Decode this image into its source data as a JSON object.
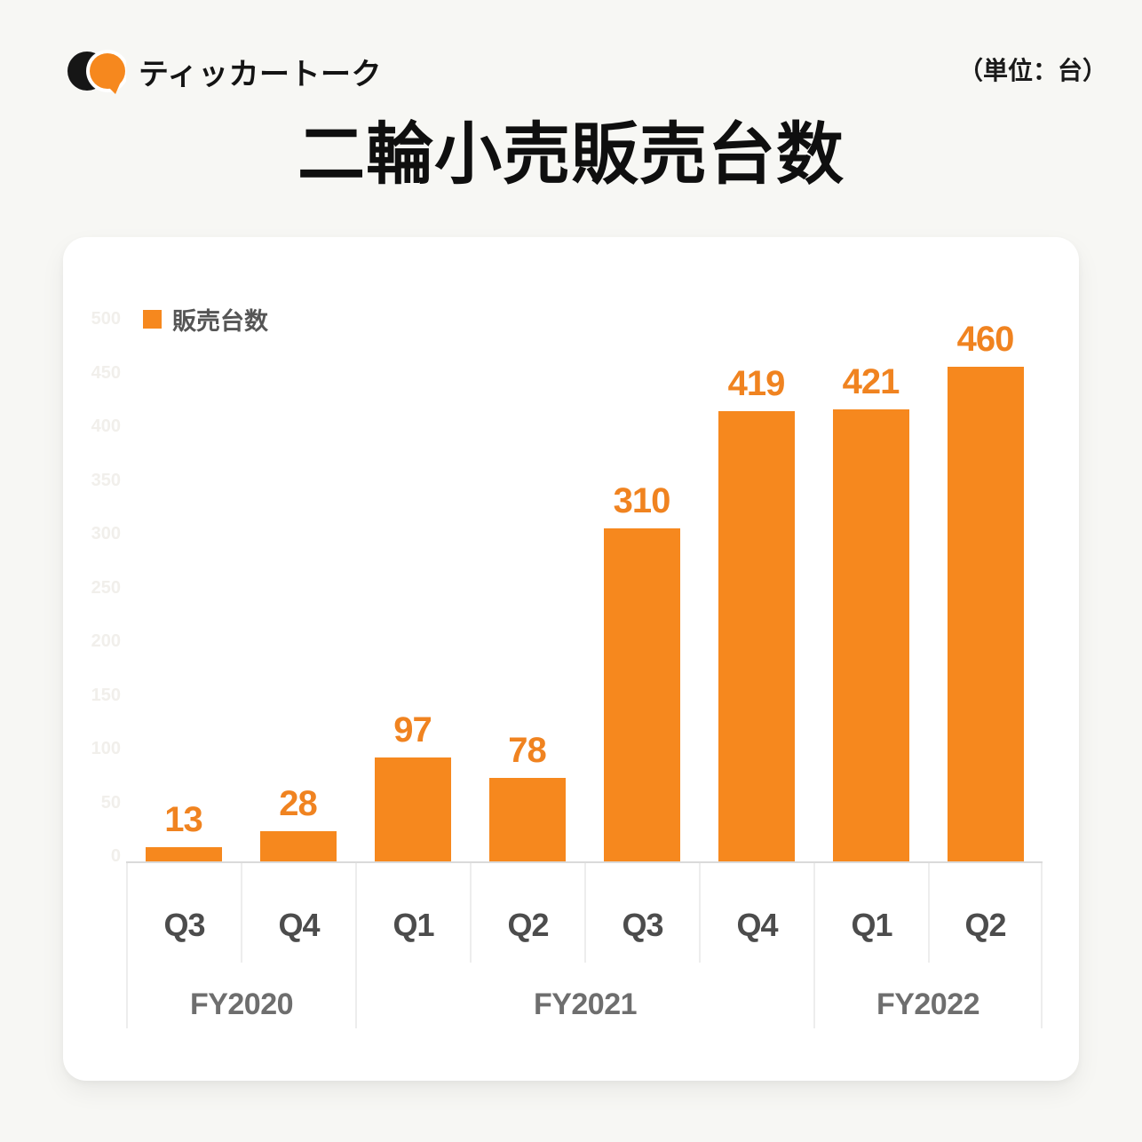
{
  "header": {
    "logo_text": "ティッカートーク",
    "unit_label": "（単位：台）"
  },
  "title": "二輪小売販売台数",
  "colors": {
    "accent_orange": "#F6881E",
    "logo_black": "#161616",
    "background": "#F7F7F4",
    "card": "#FFFFFF",
    "quarter_label": "#4C4C4C",
    "fiscal_label": "#6E6E6E",
    "divider": "#EDEDED",
    "baseline": "#DADADA",
    "ytick_label": "#F1EFEB"
  },
  "chart_data": {
    "type": "bar",
    "title": "二輪小売販売台数",
    "unit": "台",
    "legend_label": "販売台数",
    "legend_position": "top-left",
    "categories": [
      "Q3",
      "Q4",
      "Q1",
      "Q2",
      "Q3",
      "Q4",
      "Q1",
      "Q2"
    ],
    "values": [
      13,
      28,
      97,
      78,
      310,
      419,
      421,
      460
    ],
    "year_groups": [
      {
        "label": "FY2020",
        "span": 2
      },
      {
        "label": "FY2021",
        "span": 4
      },
      {
        "label": "FY2022",
        "span": 2
      }
    ],
    "ylim": [
      0,
      500
    ],
    "ytick_step": 50,
    "grid": false,
    "bar_color": "#F6881E",
    "value_label_color": "#F08320"
  }
}
